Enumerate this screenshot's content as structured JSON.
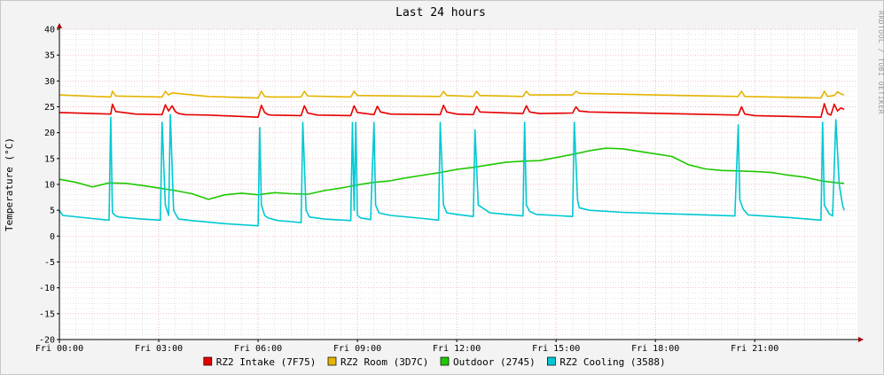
{
  "chart_data": {
    "type": "line",
    "title": "Last 24 hours",
    "ylabel": "Temperature (°C)",
    "xlabel": "",
    "watermark": "RRDTOOL / TOBI OETIKER",
    "ylim": [
      -20,
      40
    ],
    "yticks": [
      -20,
      -15,
      -10,
      -5,
      0,
      5,
      10,
      15,
      20,
      25,
      30,
      35,
      40
    ],
    "x_range_hours": [
      0,
      24.1
    ],
    "xticks": [
      {
        "h": 0,
        "label": "Fri 00:00"
      },
      {
        "h": 3,
        "label": "Fri 03:00"
      },
      {
        "h": 6,
        "label": "Fri 06:00"
      },
      {
        "h": 9,
        "label": "Fri 09:00"
      },
      {
        "h": 12,
        "label": "Fri 12:00"
      },
      {
        "h": 15,
        "label": "Fri 15:00"
      },
      {
        "h": 18,
        "label": "Fri 18:00"
      },
      {
        "h": 21,
        "label": "Fri 21:00"
      }
    ],
    "grid": true,
    "legend_position": "bottom",
    "background_color": "#ffffff",
    "series": [
      {
        "name": "RZ2 Intake (7F75)",
        "color": "#e60000",
        "x": [
          0,
          1.55,
          1.6,
          1.7,
          2.3,
          3.1,
          3.2,
          3.3,
          3.4,
          3.5,
          3.6,
          3.8,
          4.5,
          6.0,
          6.1,
          6.2,
          6.3,
          6.4,
          7.3,
          7.4,
          7.5,
          7.8,
          8.8,
          8.9,
          9.0,
          9.5,
          9.6,
          9.7,
          10.0,
          11.5,
          11.6,
          11.7,
          12.0,
          12.5,
          12.6,
          12.7,
          14.0,
          14.1,
          14.2,
          14.5,
          15.5,
          15.6,
          15.7,
          16.0,
          20.5,
          20.6,
          20.7,
          21.0,
          23.0,
          23.1,
          23.2,
          23.3,
          23.4,
          23.5,
          23.6,
          23.7
        ],
        "y": [
          23.9,
          23.6,
          25.5,
          24.1,
          23.6,
          23.5,
          25.4,
          24.2,
          25.2,
          24.1,
          23.7,
          23.5,
          23.4,
          23.0,
          25.3,
          23.9,
          23.5,
          23.4,
          23.3,
          25.2,
          23.8,
          23.4,
          23.3,
          25.2,
          23.9,
          23.5,
          25.1,
          24.0,
          23.6,
          23.5,
          25.3,
          24.0,
          23.6,
          23.5,
          25.1,
          24.0,
          23.7,
          25.2,
          24.0,
          23.7,
          23.8,
          25.0,
          24.2,
          24.0,
          23.4,
          25.0,
          23.6,
          23.3,
          23.0,
          25.6,
          23.7,
          23.4,
          25.5,
          24.2,
          24.8,
          24.5
        ]
      },
      {
        "name": "RZ2 Room (3D7C)",
        "color": "#e6b400",
        "x": [
          0,
          1.55,
          1.6,
          1.7,
          3.1,
          3.2,
          3.3,
          3.4,
          4.5,
          6.0,
          6.1,
          6.2,
          6.4,
          7.3,
          7.4,
          7.5,
          8.8,
          8.9,
          9.0,
          11.5,
          11.6,
          11.7,
          12.5,
          12.6,
          12.7,
          14.0,
          14.1,
          14.2,
          15.5,
          15.6,
          15.7,
          18.0,
          20.5,
          20.6,
          20.7,
          23.0,
          23.1,
          23.2,
          23.4,
          23.5,
          23.6,
          23.7
        ],
        "y": [
          27.3,
          26.9,
          28.0,
          27.1,
          26.9,
          28.0,
          27.3,
          27.7,
          27.0,
          26.7,
          28.0,
          27.0,
          26.9,
          26.9,
          28.0,
          27.1,
          26.9,
          28.0,
          27.2,
          27.0,
          28.0,
          27.2,
          27.0,
          28.0,
          27.2,
          27.0,
          28.0,
          27.3,
          27.3,
          28.0,
          27.6,
          27.3,
          27.0,
          28.0,
          27.0,
          26.7,
          28.0,
          27.0,
          27.2,
          27.9,
          27.5,
          27.3
        ]
      },
      {
        "name": "Outdoor (2745)",
        "color": "#1ec800",
        "x": [
          0,
          0.5,
          1.0,
          1.5,
          2.0,
          2.5,
          3.0,
          3.5,
          4.0,
          4.5,
          5.0,
          5.5,
          6.0,
          6.5,
          7.0,
          7.5,
          8.0,
          8.5,
          9.0,
          9.5,
          10.0,
          10.5,
          11.0,
          11.5,
          12.0,
          12.5,
          13.0,
          13.5,
          14.0,
          14.5,
          15.0,
          15.5,
          16.0,
          16.5,
          17.0,
          17.5,
          18.0,
          18.5,
          19.0,
          19.5,
          20.0,
          20.5,
          21.0,
          21.5,
          22.0,
          22.5,
          23.0,
          23.5,
          23.7
        ],
        "y": [
          11.0,
          10.4,
          9.5,
          10.3,
          10.2,
          9.8,
          9.3,
          8.8,
          8.2,
          7.1,
          8.0,
          8.3,
          8.0,
          8.4,
          8.2,
          8.1,
          8.8,
          9.3,
          9.9,
          10.4,
          10.7,
          11.3,
          11.8,
          12.3,
          12.9,
          13.3,
          13.8,
          14.3,
          14.5,
          14.6,
          15.2,
          15.8,
          16.5,
          17.0,
          16.9,
          16.4,
          15.9,
          15.4,
          13.8,
          13.0,
          12.7,
          12.6,
          12.5,
          12.3,
          11.8,
          11.4,
          10.7,
          10.3,
          10.2
        ]
      },
      {
        "name": "RZ2 Cooling (3588)",
        "color": "#00c8d2",
        "x": [
          0,
          0.1,
          1.0,
          1.5,
          1.55,
          1.6,
          1.7,
          1.8,
          2.5,
          3.05,
          3.1,
          3.2,
          3.3,
          3.35,
          3.45,
          3.55,
          3.6,
          4.0,
          4.5,
          5.0,
          5.5,
          6.0,
          6.05,
          6.1,
          6.2,
          6.3,
          6.6,
          7.0,
          7.3,
          7.35,
          7.45,
          7.55,
          8.0,
          8.8,
          8.85,
          8.9,
          8.95,
          9.0,
          9.1,
          9.4,
          9.5,
          9.55,
          9.65,
          10.0,
          11.0,
          11.45,
          11.5,
          11.6,
          11.7,
          12.0,
          12.5,
          12.55,
          12.65,
          13.0,
          14.0,
          14.05,
          14.1,
          14.2,
          14.4,
          15.5,
          15.55,
          15.65,
          15.7,
          16.0,
          17.0,
          18.0,
          19.0,
          20.4,
          20.5,
          20.55,
          20.65,
          20.8,
          22.0,
          23.0,
          23.05,
          23.1,
          23.25,
          23.35,
          23.45,
          23.55,
          23.65,
          23.7
        ],
        "y": [
          5.0,
          4.0,
          3.4,
          3.1,
          23.0,
          4.5,
          3.9,
          3.7,
          3.3,
          3.1,
          22.0,
          6.0,
          4.0,
          23.5,
          5.0,
          3.8,
          3.3,
          3.0,
          2.7,
          2.4,
          2.2,
          2.0,
          21.0,
          6.0,
          4.0,
          3.5,
          3.0,
          2.8,
          2.6,
          22.0,
          5.0,
          3.7,
          3.3,
          3.0,
          22.0,
          5.0,
          22.0,
          4.0,
          3.5,
          3.2,
          22.0,
          6.0,
          4.5,
          4.0,
          3.4,
          3.1,
          22.0,
          6.0,
          4.5,
          4.2,
          3.8,
          20.5,
          6.0,
          4.5,
          3.9,
          22.0,
          6.0,
          4.8,
          4.2,
          3.8,
          22.0,
          7.0,
          5.5,
          5.0,
          4.6,
          4.4,
          4.2,
          3.9,
          21.5,
          7.0,
          5.2,
          4.1,
          3.6,
          3.1,
          22.0,
          6.0,
          4.3,
          3.9,
          22.5,
          10.0,
          6.0,
          5.0
        ]
      }
    ]
  }
}
